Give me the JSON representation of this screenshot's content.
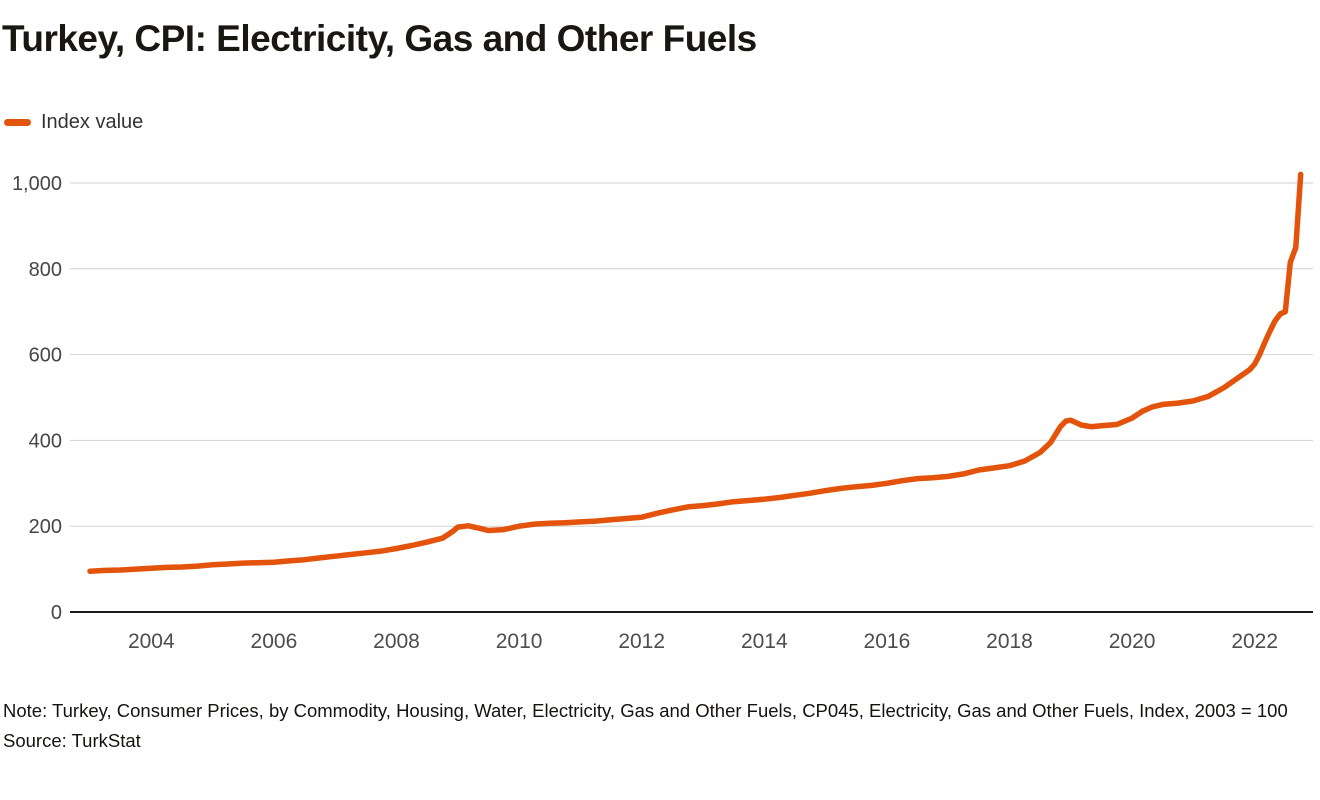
{
  "theme": {
    "accent": "#E4530B"
  },
  "header": {
    "title": "Turkey, CPI: Electricity, Gas and Other Fuels"
  },
  "legend": {
    "label": "Index value",
    "color": "#E4530B"
  },
  "footer": {
    "note": "Note: Turkey, Consumer Prices, by Commodity, Housing, Water, Electricity, Gas and Other Fuels, CP045, Electricity, Gas and Other Fuels, Index, 2003 = 100",
    "source": "Source: TurkStat"
  },
  "chart_data": {
    "type": "line",
    "title": "Turkey, CPI: Electricity, Gas and Other Fuels",
    "xlabel": "",
    "ylabel": "",
    "xlim": [
      2003.0,
      2022.9
    ],
    "ylim": [
      0,
      1050
    ],
    "grid": "horizontal",
    "legend_position": "top-left",
    "yticks": [
      0,
      200,
      400,
      600,
      800,
      1000
    ],
    "ytick_labels": [
      "0",
      "200",
      "400",
      "600",
      "800",
      "1,000"
    ],
    "xticks": [
      2004,
      2006,
      2008,
      2010,
      2012,
      2014,
      2016,
      2018,
      2020,
      2022
    ],
    "xtick_labels": [
      "2004",
      "2006",
      "2008",
      "2010",
      "2012",
      "2014",
      "2016",
      "2018",
      "2020",
      "2022"
    ],
    "x": [
      2003.0,
      2003.25,
      2003.5,
      2003.75,
      2004.0,
      2004.25,
      2004.5,
      2004.75,
      2005.0,
      2005.25,
      2005.5,
      2005.75,
      2006.0,
      2006.25,
      2006.5,
      2006.75,
      2007.0,
      2007.25,
      2007.5,
      2007.75,
      2008.0,
      2008.25,
      2008.5,
      2008.75,
      2008.92,
      2009.0,
      2009.17,
      2009.33,
      2009.5,
      2009.75,
      2010.0,
      2010.25,
      2010.5,
      2010.75,
      2011.0,
      2011.25,
      2011.5,
      2011.75,
      2012.0,
      2012.25,
      2012.5,
      2012.75,
      2013.0,
      2013.25,
      2013.5,
      2013.75,
      2014.0,
      2014.25,
      2014.5,
      2014.75,
      2015.0,
      2015.25,
      2015.5,
      2015.75,
      2016.0,
      2016.25,
      2016.5,
      2016.75,
      2017.0,
      2017.25,
      2017.5,
      2017.75,
      2018.0,
      2018.25,
      2018.5,
      2018.67,
      2018.83,
      2018.92,
      2019.0,
      2019.17,
      2019.33,
      2019.5,
      2019.75,
      2020.0,
      2020.17,
      2020.33,
      2020.5,
      2020.75,
      2021.0,
      2021.25,
      2021.5,
      2021.75,
      2021.92,
      2022.0,
      2022.08,
      2022.17,
      2022.25,
      2022.33,
      2022.42,
      2022.5,
      2022.58,
      2022.67,
      2022.75
    ],
    "series": [
      {
        "name": "Index value",
        "color": "#E4530B",
        "values": [
          95,
          97,
          98,
          100,
          102,
          104,
          105,
          107,
          110,
          112,
          114,
          115,
          116,
          119,
          122,
          126,
          130,
          134,
          138,
          142,
          148,
          155,
          163,
          172,
          188,
          198,
          201,
          196,
          190,
          192,
          200,
          205,
          207,
          208,
          210,
          212,
          215,
          218,
          221,
          230,
          238,
          245,
          248,
          252,
          257,
          260,
          263,
          267,
          272,
          277,
          283,
          288,
          292,
          295,
          300,
          306,
          311,
          313,
          316,
          322,
          331,
          336,
          341,
          352,
          372,
          395,
          432,
          445,
          447,
          436,
          432,
          434,
          437,
          452,
          468,
          478,
          484,
          487,
          492,
          503,
          523,
          548,
          565,
          578,
          600,
          630,
          655,
          678,
          695,
          700,
          815,
          850,
          1020
        ]
      }
    ]
  }
}
